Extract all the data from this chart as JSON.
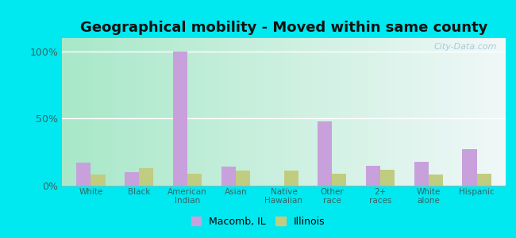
{
  "title": "Geographical mobility - Moved within same county",
  "categories": [
    "White",
    "Black",
    "American\nIndian",
    "Asian",
    "Native\nHawaiian",
    "Other\nrace",
    "2+\nraces",
    "White\nalone",
    "Hispanic"
  ],
  "macomb_values": [
    17,
    10,
    100,
    14,
    0,
    48,
    15,
    18,
    27
  ],
  "illinois_values": [
    8,
    13,
    9,
    11,
    11,
    9,
    12,
    8,
    9
  ],
  "macomb_color": "#c8a0dc",
  "illinois_color": "#c0cc80",
  "bar_width": 0.3,
  "ylim": [
    0,
    110
  ],
  "yticks": [
    0,
    50,
    100
  ],
  "ytick_labels": [
    "0%",
    "50%",
    "100%"
  ],
  "title_fontsize": 13,
  "legend_macomb": "Macomb, IL",
  "legend_illinois": "Illinois",
  "outer_bg": "#00e8f0",
  "plot_bg_left": "#a8e8c8",
  "plot_bg_right": "#f0f8f8"
}
